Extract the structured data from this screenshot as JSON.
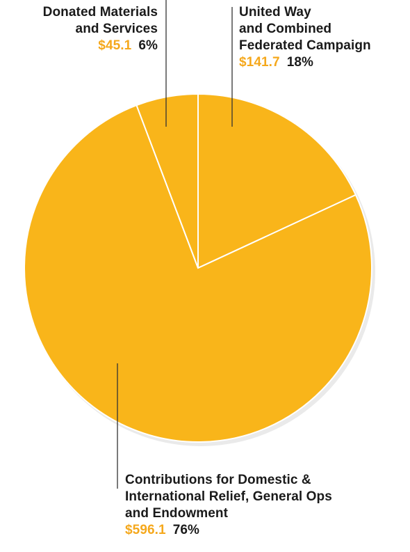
{
  "chart_data": {
    "type": "pie",
    "slices": [
      {
        "label_lines": [
          "United Way",
          "and Combined",
          "Federated Campaign"
        ],
        "amount": "$141.7",
        "percent": "18%",
        "value": 141.7
      },
      {
        "label_lines": [
          "Contributions for Domestic &",
          "International Relief, General Ops",
          "and Endowment"
        ],
        "amount": "$596.1",
        "percent": "76%",
        "value": 596.1
      },
      {
        "label_lines": [
          "Donated Materials",
          "and Services"
        ],
        "amount": "$45.1",
        "percent": "6%",
        "value": 45.1
      }
    ],
    "colors": {
      "slice_fill": "#f9b51a",
      "slice_border": "#ffffff",
      "shadow": "#d9d9d9",
      "amount_text": "#f5a81c",
      "label_text": "#1a1a1a",
      "leader_line": "#333333"
    }
  }
}
